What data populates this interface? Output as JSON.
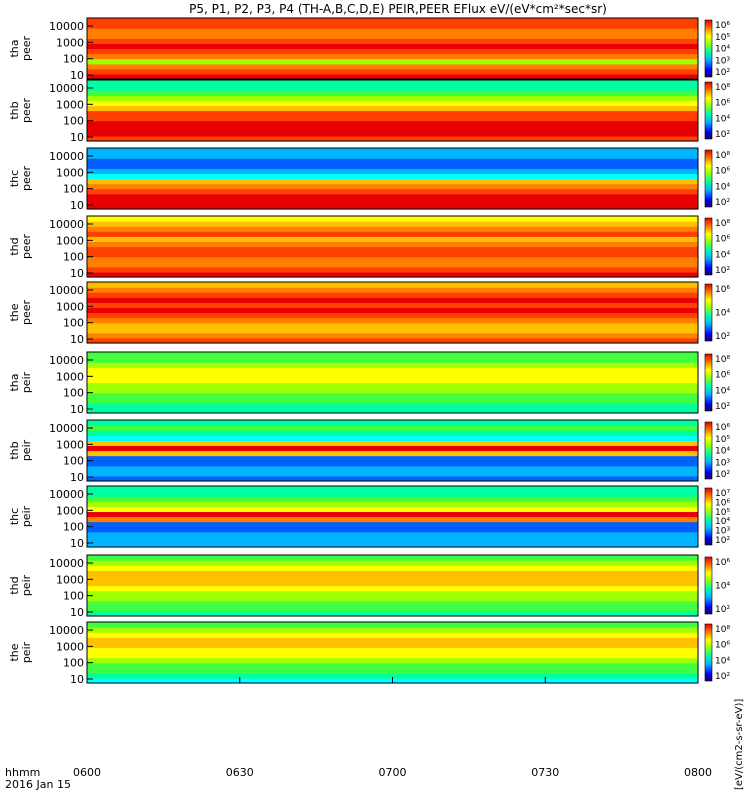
{
  "chart_data": {
    "type": "heatmap",
    "title": "P5, P1, P2, P3, P4 (TH-A,B,C,D,E) PEIR,PEER EFlux eV/(eV*cm²*sec*sr)",
    "x_axis": {
      "ticks": [
        "0600",
        "0630",
        "0700",
        "0730",
        "0800"
      ],
      "label_line1": "hhmm",
      "label_line2": "2016 Jan 15"
    },
    "colorbar_label": "[eV/(cm2-s-sr-eV)]",
    "panels": [
      {
        "ylabel_1": "tha",
        "ylabel_2": "peer",
        "yticks": [
          "10",
          "100",
          "1000",
          "10000"
        ],
        "cbar_ticks": [
          "10⁶",
          "10⁵",
          "10⁴",
          "10³",
          "10²"
        ]
      },
      {
        "ylabel_1": "thb",
        "ylabel_2": "peer",
        "yticks": [
          "10",
          "100",
          "1000",
          "10000"
        ],
        "cbar_ticks": [
          "10⁸",
          "10⁶",
          "10⁴",
          "10²"
        ]
      },
      {
        "ylabel_1": "thc",
        "ylabel_2": "peer",
        "yticks": [
          "10",
          "100",
          "1000",
          "10000"
        ],
        "cbar_ticks": [
          "10⁸",
          "10⁶",
          "10⁴",
          "10²"
        ]
      },
      {
        "ylabel_1": "thd",
        "ylabel_2": "peer",
        "yticks": [
          "10",
          "100",
          "1000",
          "10000"
        ],
        "cbar_ticks": [
          "10⁸",
          "10⁶",
          "10⁴",
          "10²"
        ]
      },
      {
        "ylabel_1": "the",
        "ylabel_2": "peer",
        "yticks": [
          "10",
          "100",
          "1000",
          "10000"
        ],
        "cbar_ticks": [
          "10⁶",
          "10⁴",
          "10²"
        ]
      },
      {
        "ylabel_1": "tha",
        "ylabel_2": "peir",
        "yticks": [
          "10",
          "100",
          "1000",
          "10000"
        ],
        "cbar_ticks": [
          "10⁸",
          "10⁶",
          "10⁴",
          "10²"
        ]
      },
      {
        "ylabel_1": "thb",
        "ylabel_2": "peir",
        "yticks": [
          "10",
          "100",
          "1000",
          "10000"
        ],
        "cbar_ticks": [
          "10⁶",
          "10⁵",
          "10⁴",
          "10³",
          "10²"
        ]
      },
      {
        "ylabel_1": "thc",
        "ylabel_2": "peir",
        "yticks": [
          "10",
          "100",
          "1000",
          "10000"
        ],
        "cbar_ticks": [
          "10⁷",
          "10⁶",
          "10⁵",
          "10⁴",
          "10³",
          "10²"
        ]
      },
      {
        "ylabel_1": "thd",
        "ylabel_2": "peir",
        "yticks": [
          "10",
          "100",
          "1000",
          "10000"
        ],
        "cbar_ticks": [
          "10⁶",
          "10⁴",
          "10²"
        ]
      },
      {
        "ylabel_1": "the",
        "ylabel_2": "peir",
        "yticks": [
          "10",
          "100",
          "1000",
          "10000"
        ],
        "cbar_ticks": [
          "10⁸",
          "10⁶",
          "10⁴",
          "10²"
        ]
      }
    ]
  }
}
